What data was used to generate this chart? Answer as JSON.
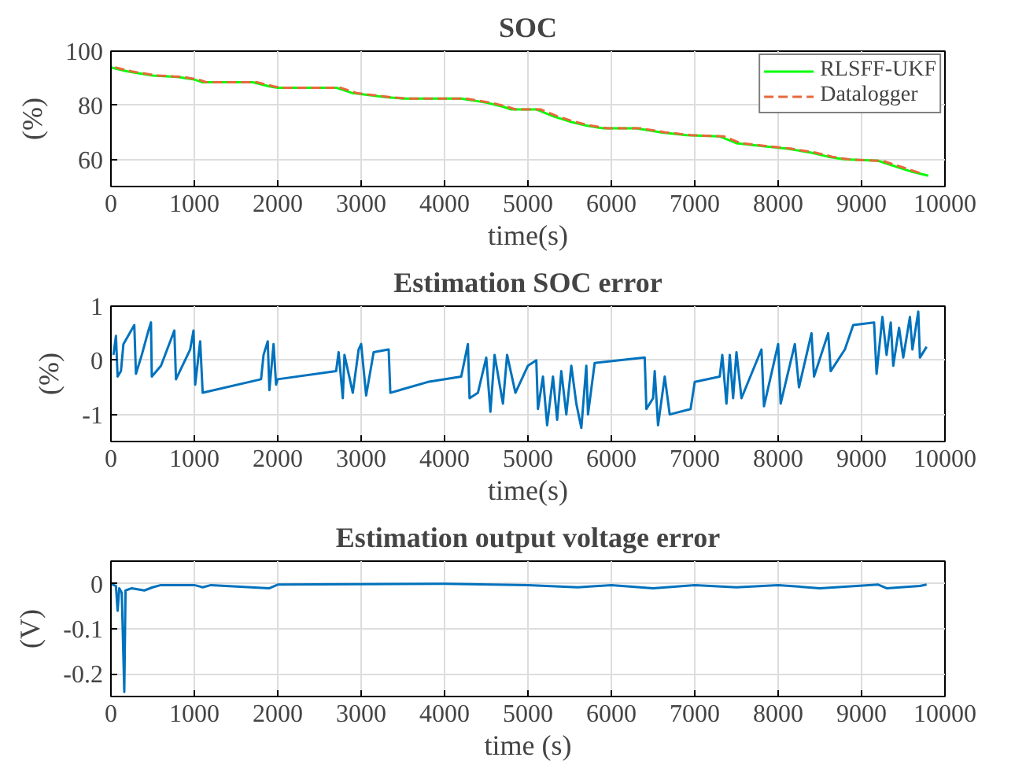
{
  "chart_data": [
    {
      "type": "line",
      "title": "SOC",
      "xlabel": "time(s)",
      "ylabel": "(%)",
      "xlim": [
        0,
        10000
      ],
      "ylim": [
        50,
        100
      ],
      "xticks": [
        0,
        1000,
        2000,
        3000,
        4000,
        5000,
        6000,
        7000,
        8000,
        9000,
        10000
      ],
      "yticks": [
        60,
        80,
        100
      ],
      "grid": true,
      "legend": "top right",
      "series": [
        {
          "name": "RLSFF-UKF",
          "color": "#00ff00",
          "line_style": "solid",
          "x": [
            0,
            200,
            500,
            800,
            1000,
            1100,
            1700,
            1900,
            2000,
            2700,
            2900,
            3300,
            3500,
            4200,
            4500,
            4700,
            4800,
            5100,
            5300,
            5500,
            5700,
            5900,
            6300,
            6600,
            6900,
            7300,
            7500,
            7800,
            8100,
            8400,
            8600,
            8800,
            9200,
            9400,
            9600,
            9800
          ],
          "values": [
            94,
            92.5,
            91,
            90.5,
            89.5,
            88.5,
            88.5,
            87,
            86.5,
            86.5,
            84.5,
            83,
            82.5,
            82.5,
            81,
            79.5,
            78.5,
            78.5,
            76,
            74,
            72.5,
            71.5,
            71.5,
            70,
            69,
            68.5,
            66,
            65,
            64,
            62.5,
            61,
            60,
            59.5,
            57.5,
            55.5,
            54
          ]
        },
        {
          "name": "Datalogger",
          "color": "#e8683c",
          "line_style": "dashed",
          "x": [
            50,
            250,
            550,
            850,
            1050,
            1150,
            1750,
            1950,
            2050,
            2750,
            2950,
            3350,
            3550,
            4250,
            4550,
            4750,
            4850,
            5150,
            5350,
            5550,
            5750,
            5950,
            6350,
            6650,
            6950,
            7350,
            7550,
            7850,
            8150,
            8450,
            8650,
            8850,
            9250,
            9450,
            9650,
            9750
          ],
          "values": [
            94,
            92.5,
            91,
            90.5,
            89.5,
            88.5,
            88.5,
            87,
            86.5,
            86.5,
            84.5,
            83,
            82.5,
            82.5,
            81,
            79.5,
            78.5,
            78.5,
            76,
            74,
            72.5,
            71.5,
            71.5,
            70,
            69,
            68.5,
            66,
            65,
            64,
            62.5,
            61,
            60,
            59.5,
            57.5,
            55.5,
            54.5
          ]
        }
      ]
    },
    {
      "type": "line",
      "title": "Estimation SOC error",
      "xlabel": "time(s)",
      "ylabel": "(%)",
      "xlim": [
        0,
        10000
      ],
      "ylim": [
        -1.5,
        1
      ],
      "xticks": [
        0,
        1000,
        2000,
        3000,
        4000,
        5000,
        6000,
        7000,
        8000,
        9000,
        10000
      ],
      "yticks": [
        -1,
        0,
        1
      ],
      "grid": true,
      "series": [
        {
          "color": "#0072bd",
          "x": [
            30,
            60,
            80,
            120,
            150,
            280,
            300,
            370,
            450,
            480,
            490,
            600,
            760,
            780,
            950,
            990,
            1010,
            1070,
            1100,
            1800,
            1830,
            1880,
            1900,
            1950,
            1980,
            2000,
            2700,
            2730,
            2780,
            2800,
            2900,
            2970,
            3000,
            3060,
            3150,
            3330,
            3350,
            3800,
            4200,
            4280,
            4300,
            4400,
            4500,
            4550,
            4600,
            4700,
            4750,
            4850,
            5000,
            5100,
            5120,
            5180,
            5230,
            5300,
            5350,
            5400,
            5460,
            5520,
            5580,
            5640,
            5700,
            5720,
            5800,
            6400,
            6420,
            6500,
            6520,
            6560,
            6640,
            6700,
            6950,
            7000,
            7300,
            7330,
            7380,
            7420,
            7460,
            7500,
            7560,
            7800,
            7830,
            8000,
            8030,
            8200,
            8250,
            8400,
            8430,
            8600,
            8630,
            8800,
            8900,
            9150,
            9180,
            9250,
            9300,
            9350,
            9380,
            9450,
            9500,
            9580,
            9610,
            9680,
            9700,
            9780
          ],
          "values": [
            0.1,
            0.45,
            -0.3,
            -0.2,
            0.3,
            0.65,
            -0.25,
            0.1,
            0.55,
            0.7,
            -0.3,
            -0.1,
            0.55,
            -0.35,
            0.2,
            0.55,
            -0.45,
            0.35,
            -0.6,
            -0.35,
            0.1,
            0.35,
            -0.55,
            0.3,
            -0.45,
            -0.35,
            -0.2,
            0.15,
            -0.7,
            0.1,
            -0.6,
            0.2,
            0.3,
            -0.65,
            0.15,
            0.2,
            -0.6,
            -0.4,
            -0.3,
            0.3,
            -0.7,
            -0.6,
            0.05,
            -0.95,
            0.1,
            -0.8,
            0.1,
            -0.6,
            -0.1,
            0.0,
            -0.9,
            -0.3,
            -1.2,
            -0.3,
            -1.1,
            -0.2,
            -1.0,
            -0.1,
            -0.8,
            -1.25,
            -0.1,
            -1.0,
            -0.05,
            0.05,
            -0.9,
            -0.7,
            -0.2,
            -1.2,
            -0.3,
            -1.0,
            -0.9,
            -0.4,
            -0.3,
            0.1,
            -0.8,
            0.1,
            -0.7,
            0.15,
            -0.7,
            0.2,
            -0.85,
            0.3,
            -0.8,
            0.3,
            -0.5,
            0.5,
            -0.3,
            0.5,
            -0.2,
            0.2,
            0.65,
            0.7,
            -0.25,
            0.8,
            0.1,
            0.7,
            -0.1,
            0.6,
            0.05,
            0.8,
            0.2,
            0.9,
            0.05,
            0.25
          ]
        }
      ]
    },
    {
      "type": "line",
      "title": "Estimation output voltage error",
      "xlabel": "time (s)",
      "ylabel": "(V)",
      "xlim": [
        0,
        10000
      ],
      "ylim": [
        -0.25,
        0.05
      ],
      "xticks": [
        0,
        1000,
        2000,
        3000,
        4000,
        5000,
        6000,
        7000,
        8000,
        9000,
        10000
      ],
      "yticks": [
        -0.2,
        -0.1,
        0
      ],
      "grid": true,
      "series": [
        {
          "color": "#0072bd",
          "x": [
            0,
            60,
            80,
            100,
            130,
            160,
            175,
            250,
            400,
            500,
            600,
            1000,
            1100,
            1200,
            1900,
            2000,
            4000,
            5000,
            5600,
            6000,
            6500,
            7000,
            7500,
            8000,
            8500,
            9200,
            9300,
            9700,
            9780
          ],
          "values": [
            0,
            -0.005,
            -0.06,
            -0.01,
            -0.02,
            -0.24,
            -0.015,
            -0.01,
            -0.015,
            -0.008,
            -0.003,
            -0.003,
            -0.008,
            -0.003,
            -0.01,
            -0.002,
            0.0,
            -0.003,
            -0.008,
            -0.003,
            -0.01,
            -0.003,
            -0.008,
            -0.003,
            -0.01,
            -0.002,
            -0.01,
            -0.005,
            -0.002
          ]
        }
      ]
    }
  ]
}
